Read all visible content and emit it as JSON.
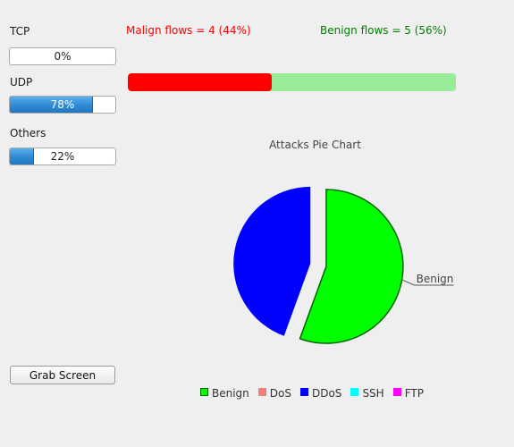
{
  "protocols": [
    {
      "label": "TCP",
      "value": 0,
      "text": "0%"
    },
    {
      "label": "UDP",
      "value": 78,
      "text": "78%"
    },
    {
      "label": "Others",
      "value": 22,
      "text": "22%"
    }
  ],
  "flows": {
    "malign_text": "Malign flows = 4 (44%)",
    "benign_text": "Benign flows = 5 (56%)",
    "malign_count": 4,
    "benign_count": 5,
    "malign_percent": 44,
    "malign_color": "#ff0000",
    "benign_color": "#008000",
    "malign_bar_color": "#ff0000",
    "benign_bar_color": "#98ec98"
  },
  "chart_data": {
    "type": "pie",
    "title": "Attacks Pie Chart",
    "slices": [
      {
        "name": "Benign",
        "value": 5,
        "color": "#00ff00",
        "exploded": false,
        "show_label": true
      },
      {
        "name": "DDoS",
        "value": 4,
        "color": "#0000ff",
        "exploded": true,
        "show_label": false
      }
    ],
    "legend": [
      {
        "name": "Benign",
        "color": "#00ff00",
        "border": "#006400"
      },
      {
        "name": "DoS",
        "color": "#f08080",
        "border": "#f08080"
      },
      {
        "name": "DDoS",
        "color": "#0000ff",
        "border": "#0000ff"
      },
      {
        "name": "SSH",
        "color": "#00ffff",
        "border": "#00ffff"
      },
      {
        "name": "FTP",
        "color": "#ff00ff",
        "border": "#ff00ff"
      }
    ],
    "legend_position": "bottom"
  },
  "buttons": {
    "grab_screen": "Grab Screen"
  }
}
